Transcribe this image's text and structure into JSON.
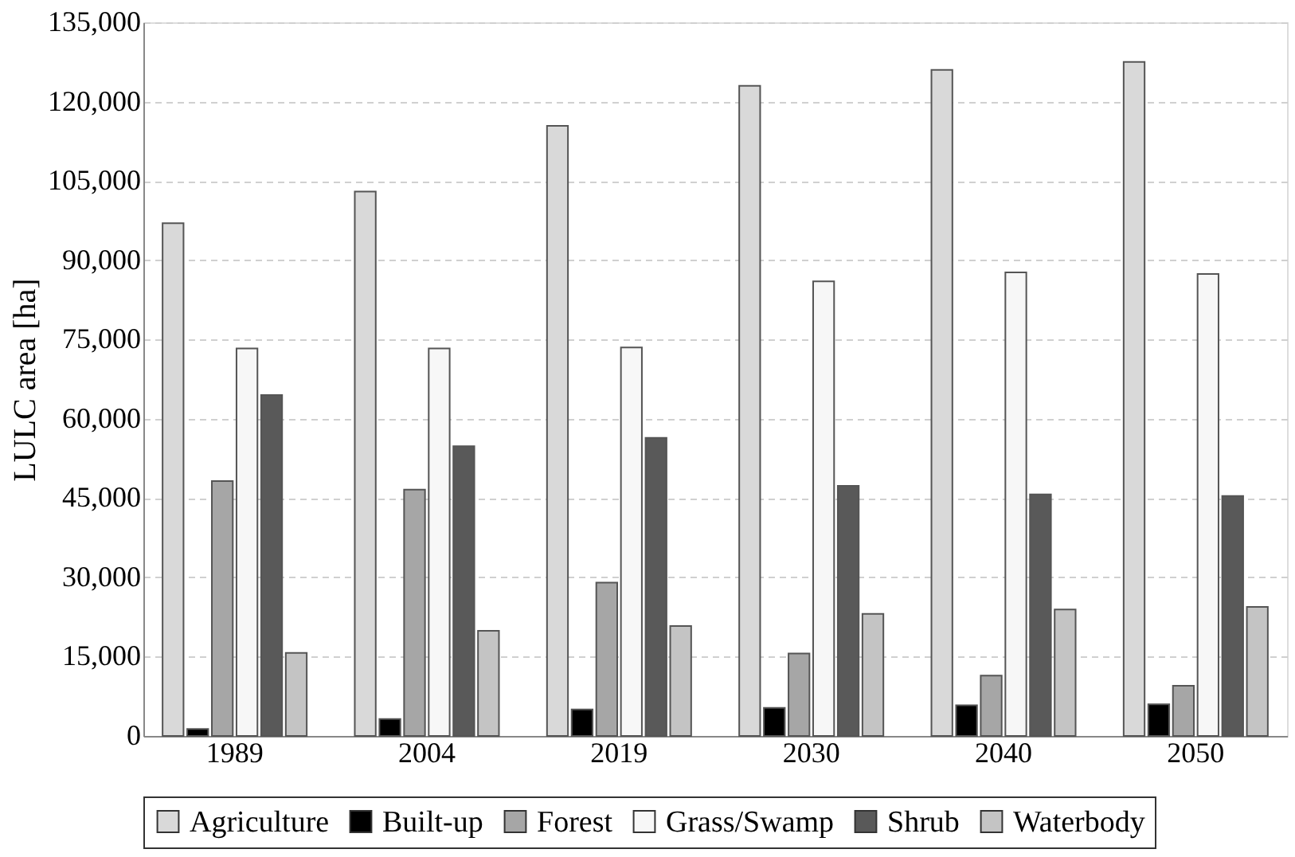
{
  "chart_data": {
    "type": "bar",
    "ylabel": "LULC area [ha]",
    "categories": [
      "1989",
      "2004",
      "2019",
      "2030",
      "2040",
      "2050"
    ],
    "series": [
      {
        "name": "Agriculture",
        "color": "#d9d9d9",
        "values": [
          97000,
          103000,
          115400,
          123000,
          126000,
          127500
        ]
      },
      {
        "name": "Built-up",
        "color": "#000000",
        "values": [
          1300,
          3200,
          5000,
          5300,
          5800,
          6000
        ]
      },
      {
        "name": "Forest",
        "color": "#a6a6a6",
        "values": [
          48200,
          46600,
          29000,
          15600,
          11400,
          9500
        ]
      },
      {
        "name": "Grass/Swamp",
        "color": "#f7f7f7",
        "values": [
          73300,
          73300,
          73500,
          86000,
          87700,
          87400
        ]
      },
      {
        "name": "Shrub",
        "color": "#595959",
        "values": [
          64500,
          54800,
          56400,
          47300,
          45700,
          45400
        ]
      },
      {
        "name": "Waterbody",
        "color": "#c4c4c4",
        "values": [
          15700,
          19900,
          20800,
          23100,
          23900,
          24400
        ]
      }
    ],
    "ylim": [
      0,
      135000
    ],
    "yticks": [
      0,
      {
        "value": 15000,
        "label": "15,000"
      },
      {
        "value": 30000,
        "label": "30,000"
      },
      {
        "value": 45000,
        "label": "45,000"
      },
      {
        "value": 60000,
        "label": "60,000"
      },
      {
        "value": 75000,
        "label": "75,000"
      },
      {
        "value": 90000,
        "label": "90,000"
      },
      {
        "value": 105000,
        "label": "105,000"
      },
      {
        "value": 120000,
        "label": "120,000"
      },
      {
        "value": 135000,
        "label": "135,000"
      }
    ],
    "grid": "y",
    "legend": "bottom"
  }
}
